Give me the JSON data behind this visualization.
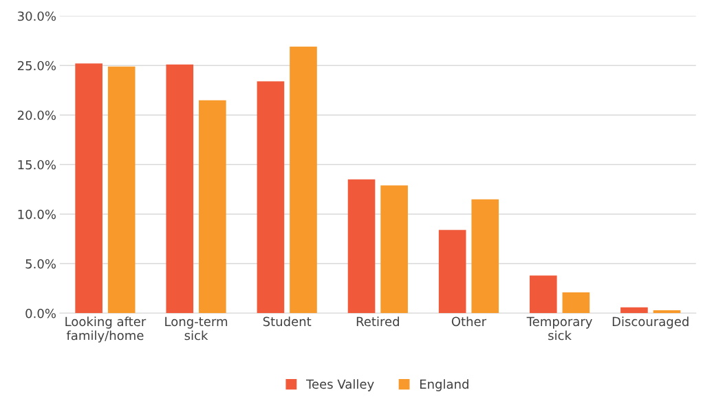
{
  "chart_data": {
    "type": "bar",
    "categories": [
      "Looking after\nfamily/home",
      "Long-term\nsick",
      "Student",
      "Retired",
      "Other",
      "Temporary\nsick",
      "Discouraged"
    ],
    "series": [
      {
        "name": "Tees Valley",
        "color": "#f05a3a",
        "values": [
          25.2,
          25.1,
          23.4,
          13.5,
          8.4,
          3.8,
          0.6
        ]
      },
      {
        "name": "England",
        "color": "#f7992b",
        "values": [
          24.9,
          21.5,
          26.9,
          12.9,
          11.5,
          2.1,
          0.3
        ]
      }
    ],
    "ylim": [
      0,
      30
    ],
    "yticks": [
      {
        "value": 0,
        "label": "0.0%"
      },
      {
        "value": 5,
        "label": "5.0%"
      },
      {
        "value": 10,
        "label": "10.0%"
      },
      {
        "value": 15,
        "label": "15.0%"
      },
      {
        "value": 20,
        "label": "20.0%"
      },
      {
        "value": 25,
        "label": "25.0%"
      },
      {
        "value": 30,
        "label": "30.0%"
      }
    ],
    "grid": "y",
    "legend": "bottom"
  }
}
